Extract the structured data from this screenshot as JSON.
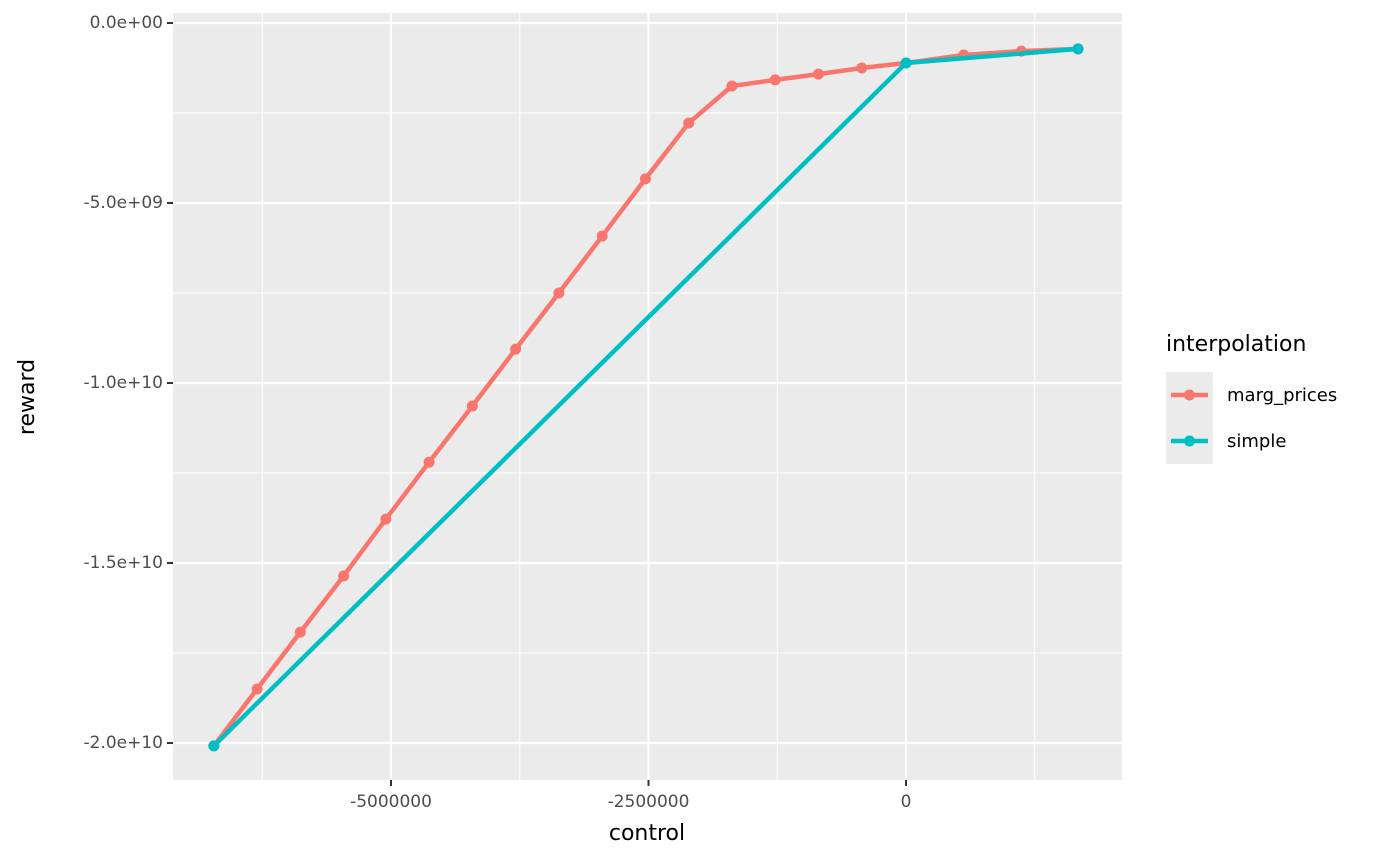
{
  "chart_data": {
    "type": "line",
    "x_label": "control",
    "y_label": "reward",
    "legend_title": "interpolation",
    "xlim": [
      -7116500,
      2097000
    ],
    "ylim": [
      -21028000000,
      278000000
    ],
    "xticks": [
      -5000000,
      -2500000,
      0
    ],
    "yticks": [
      {
        "value": 0,
        "label": "0.0e+00"
      },
      {
        "value": -5000000000,
        "label": "-5.0e+09"
      },
      {
        "value": -10000000000,
        "label": "-1.0e+10"
      },
      {
        "value": -15000000000,
        "label": "-1.5e+10"
      },
      {
        "value": -20000000000,
        "label": "-2.0e+10"
      }
    ],
    "grid": true,
    "legend": "right",
    "series": [
      {
        "name": "marg_prices",
        "color": "#F8766D",
        "x": [
          -6720000,
          -6300000,
          -5880000,
          -5460000,
          -5050000,
          -4630000,
          -4210000,
          -3790000,
          -3370000,
          -2950000,
          -2530000,
          -2110000,
          -1690000,
          -1270000,
          -850000,
          -430000,
          0,
          560000,
          1120000,
          1670000
        ],
        "values": [
          -20080000000,
          -18500000000,
          -16920000000,
          -15360000000,
          -13780000000,
          -12200000000,
          -10640000000,
          -9060000000,
          -7500000000,
          -5920000000,
          -4330000000,
          -2780000000,
          -1750000000,
          -1580000000,
          -1420000000,
          -1250000000,
          -1110000000,
          -890000000,
          -780000000,
          -720000000
        ]
      },
      {
        "name": "simple",
        "color": "#00BFC4",
        "x": [
          -6720000,
          0,
          1670000
        ],
        "values": [
          -20080000000,
          -1110000000,
          -720000000
        ]
      }
    ]
  }
}
